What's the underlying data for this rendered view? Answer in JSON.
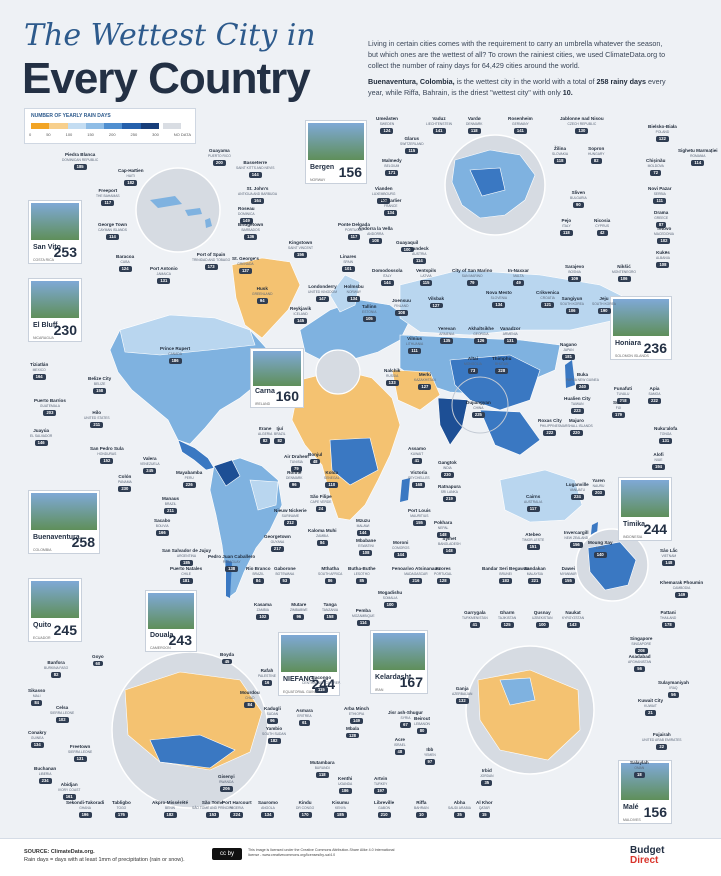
{
  "title_line1": "The Wettest City in",
  "title_line2": "Every Country",
  "intro_p1": "Living in certain cities comes with the requirement to carry an umbrella whatever the season, but which ones are the wettest of all? To crown the rainiest cities, we used ClimateData.org to collect the number of rainy days for 64,429 cities around the world.",
  "intro_p2_a": "Buenaventura, Colombia,",
  "intro_p2_b": " is the wettest city in the world with a total of ",
  "intro_p2_c": "258 rainy days",
  "intro_p2_d": " every year, while Riffa, Bahrain, is the driest \"wettest city\" with only ",
  "intro_p2_e": "10.",
  "legend": {
    "title": "NUMBER OF YEARLY RAIN DAYS",
    "ticks": [
      "0",
      "50",
      "100",
      "150",
      "200",
      "250",
      "300",
      "NO DATA"
    ],
    "colors": [
      "#f2a424",
      "#f7cf8c",
      "#c4ddf2",
      "#8fbde6",
      "#4f8fd0",
      "#2460ac",
      "#173e7a",
      "#d9dde3"
    ]
  },
  "map_colors": {
    "ocean": "#eef1f5",
    "land_light": "#b9d6ef",
    "land_mid": "#7fb2e0",
    "land_dark": "#3a78c2",
    "land_darkest": "#1d4f95",
    "dry": "#f4c271",
    "circle": "#d6dbe2"
  },
  "photos": [
    {
      "city": "Bergen",
      "country": "NORWAY",
      "value": "156"
    },
    {
      "city": "San Vito",
      "country": "COSTA RICA",
      "value": "253"
    },
    {
      "city": "El Bluff",
      "country": "NICARAGUA",
      "value": "230"
    },
    {
      "city": "Honiara",
      "country": "SOLOMON ISLANDS",
      "value": "236"
    },
    {
      "city": "Carna",
      "country": "IRELAND",
      "value": "160"
    },
    {
      "city": "Buenaventura",
      "country": "COLOMBIA",
      "value": "258"
    },
    {
      "city": "Timika",
      "country": "INDONESIA",
      "value": "244"
    },
    {
      "city": "Quito",
      "country": "ECUADOR",
      "value": "245"
    },
    {
      "city": "Douala",
      "country": "CAMEROON",
      "value": "243"
    },
    {
      "city": "NIEFANG",
      "country": "EQUATORIAL GUINEA",
      "value": "244"
    },
    {
      "city": "Kelardasht",
      "country": "IRAN",
      "value": "167"
    },
    {
      "city": "Malé",
      "country": "MALDIVES",
      "value": "156"
    }
  ],
  "labels": [
    {
      "c": "Umeåsten",
      "n": "SWEDEN",
      "v": "124"
    },
    {
      "c": "Vaduz",
      "n": "LIECHTENSTEIN",
      "v": "141"
    },
    {
      "c": "Vardø",
      "n": "DENMARK",
      "v": "118"
    },
    {
      "c": "Rosenheim",
      "n": "GERMANY",
      "v": "141"
    },
    {
      "c": "Jablonne nad Nisou",
      "n": "CZECH REPUBLIC",
      "v": "130"
    },
    {
      "c": "Bielsko-Biała",
      "n": "POLAND",
      "v": "122"
    },
    {
      "c": "Glarus",
      "n": "SWITZERLAND",
      "v": "115"
    },
    {
      "c": "Guayama",
      "n": "PUERTO RICO",
      "v": "200"
    },
    {
      "c": "Piedra Blanca",
      "n": "DOMINICAN REPUBLIC",
      "v": "185"
    },
    {
      "c": "Cap-Haïtien",
      "n": "HAITI",
      "v": "182"
    },
    {
      "c": "Basseterre",
      "n": "SAINT KITTS AND NEVIS",
      "v": "144"
    },
    {
      "c": "Malmedy",
      "n": "BELGIUM",
      "v": "171"
    },
    {
      "c": "Žilina",
      "n": "SLOVAKIA",
      "v": "118"
    },
    {
      "c": "Sopron",
      "n": "HUNGARY",
      "v": "82"
    },
    {
      "c": "Chișinău",
      "n": "MOLDOVA",
      "v": "72"
    },
    {
      "c": "Sighetu Marmației",
      "n": "ROMANIA",
      "v": "114"
    },
    {
      "c": "Freeport",
      "n": "THE BAHAMAS",
      "v": "117"
    },
    {
      "c": "St. John's",
      "n": "ANTIGUA AND BARBUDA",
      "v": "164"
    },
    {
      "c": "Vianden",
      "n": "LUXEMBOURG",
      "v": "133"
    },
    {
      "c": "Sliven",
      "n": "BULGARIA",
      "v": "90"
    },
    {
      "c": "Novi Pazar",
      "n": "SERBIA",
      "v": "111"
    },
    {
      "c": "Roseau",
      "n": "DOMINICA",
      "v": "149"
    },
    {
      "c": "Pontarlier",
      "n": "FRANCE",
      "v": "134"
    },
    {
      "c": "Drama",
      "n": "GREECE",
      "v": "87"
    },
    {
      "c": "George Town",
      "n": "CAYMAN ISLANDS",
      "v": "114"
    },
    {
      "c": "Bridgetown",
      "n": "BARBADOS",
      "v": "136"
    },
    {
      "c": "Ponte Delgada",
      "n": "PORTUGAL",
      "v": "117"
    },
    {
      "c": "Andorra la Vella",
      "n": "ANDORRA",
      "v": "108"
    },
    {
      "c": "Pejo",
      "n": "ITALY",
      "v": "118"
    },
    {
      "c": "Nicosia",
      "n": "CYPRUS",
      "v": "42"
    },
    {
      "c": "Tetovo",
      "n": "MACEDONIA",
      "v": "102"
    },
    {
      "c": "Guayaquil",
      "n": "",
      "v": "100"
    },
    {
      "c": "Kingstown",
      "n": "SAINT VINCENT",
      "v": "156"
    },
    {
      "c": "St. George's",
      "n": "GRENADA",
      "v": "137"
    },
    {
      "c": "Kukës",
      "n": "ALBANIA",
      "v": "108"
    },
    {
      "c": "Baracoa",
      "n": "CUBA",
      "v": "124"
    },
    {
      "c": "Port of Spain",
      "n": "TRINIDAD AND TOBAGO",
      "v": "173"
    },
    {
      "c": "Port Antonio",
      "n": "JAMAICA",
      "v": "131"
    },
    {
      "c": "Linares",
      "n": "SPAIN",
      "v": "101"
    },
    {
      "c": "Landeck",
      "n": "AUSTRIA",
      "v": "114"
    },
    {
      "c": "Domodossola",
      "n": "ITALY",
      "v": "144"
    },
    {
      "c": "Ventspils",
      "n": "LATVIA",
      "v": "115"
    },
    {
      "c": "City of San Marino",
      "n": "SAN MARINO",
      "v": "79"
    },
    {
      "c": "Sarajevo",
      "n": "BOSNIA",
      "v": "109"
    },
    {
      "c": "Nikšić",
      "n": "MONTENEGRO",
      "v": "106"
    },
    {
      "c": "In-Naxxar",
      "n": "MALTA",
      "v": "49"
    },
    {
      "c": "Londonderry",
      "n": "UNITED KINGDOM",
      "v": "147"
    },
    {
      "c": "Holmsbu",
      "n": "NORWAY",
      "v": "134"
    },
    {
      "c": "Nova Mesto",
      "n": "SLOVENIA",
      "v": "134"
    },
    {
      "c": "Crikvenica",
      "n": "CROATIA",
      "v": "121"
    },
    {
      "c": "Husk",
      "n": "GREENLAND",
      "v": "94"
    },
    {
      "c": "Tallinn",
      "n": "ESTONIA",
      "v": "105"
    },
    {
      "c": "Joensuu",
      "n": "FINLAND",
      "v": "108"
    },
    {
      "c": "Vilsbak",
      "n": "",
      "v": "127"
    },
    {
      "c": "Sangiyun",
      "n": "SOUTH KOREA",
      "v": "106"
    },
    {
      "c": "Jeju",
      "n": "SOUTH KOREA",
      "v": "190"
    },
    {
      "c": "Reykjavik",
      "n": "ICELAND",
      "v": "145"
    },
    {
      "c": "Yerevan",
      "n": "ARMENIA",
      "v": "135"
    },
    {
      "c": "Akhaltsikhe",
      "n": "GEORGIA",
      "v": "126"
    },
    {
      "c": "Vanadzor",
      "n": "ARMENIA",
      "v": "131"
    },
    {
      "c": "Vilnius",
      "n": "LITHUANIA",
      "v": "111"
    },
    {
      "c": "Prince Rupert",
      "n": "CANADA",
      "v": "186"
    },
    {
      "c": "Tiziatlán",
      "n": "MEXICO",
      "v": "164"
    },
    {
      "c": "Belize City",
      "n": "BELIZE",
      "v": "158"
    },
    {
      "c": "Puerto Barrios",
      "n": "GUATEMALA",
      "v": "203"
    },
    {
      "c": "Hilo",
      "n": "UNITED STATES",
      "v": "211"
    },
    {
      "c": "Juayúa",
      "n": "EL SALVADOR",
      "v": "146"
    },
    {
      "c": "San Pedro Sula",
      "n": "HONDURAS",
      "v": "152"
    },
    {
      "c": "Nagano",
      "n": "JAPAN",
      "v": "181"
    },
    {
      "c": "Buka",
      "n": "PAPUA NEW GUINEA",
      "v": "240"
    },
    {
      "c": "Funafuti",
      "n": "TUVALU",
      "v": "218"
    },
    {
      "c": "Apia",
      "n": "SAMOA",
      "v": "222"
    },
    {
      "c": "Nalchik",
      "n": "RUSSIA",
      "v": "133"
    },
    {
      "c": "Merki",
      "n": "KAZAKHSTAN",
      "v": "127"
    },
    {
      "c": "Altai",
      "n": "MONGOLIA",
      "v": "73"
    },
    {
      "c": "Thimphu",
      "n": "BHUTAN",
      "v": "228"
    },
    {
      "c": "Dujiangyan",
      "n": "CHINA",
      "v": "225"
    },
    {
      "c": "Hualien City",
      "n": "TAIWAN",
      "v": "223"
    },
    {
      "c": "Suva",
      "n": "FIJI",
      "v": "179"
    },
    {
      "c": "Nuku'alofa",
      "n": "TONGA",
      "v": "131"
    },
    {
      "c": "Majuro",
      "n": "MARSHALL ISLANDS",
      "v": "220"
    },
    {
      "c": "Roxas City",
      "n": "PHILIPPINES",
      "v": "222"
    },
    {
      "c": "Alofi",
      "n": "NIUE",
      "v": "194"
    },
    {
      "c": "Valera",
      "n": "VENEZUELA",
      "v": "245"
    },
    {
      "c": "Colón",
      "n": "PANAMA",
      "v": "230"
    },
    {
      "c": "Mayabamba",
      "n": "PERU",
      "v": "226"
    },
    {
      "c": "Ijuí",
      "n": "BRAZIL",
      "v": "82"
    },
    {
      "c": "Itrane",
      "n": "ALGERIA",
      "v": "82"
    },
    {
      "c": "Air Drahem",
      "n": "TUNISIA",
      "v": "79"
    },
    {
      "c": "Ronne",
      "n": "DENMARK",
      "v": "96"
    },
    {
      "c": "Bonjul",
      "n": "",
      "v": "48"
    },
    {
      "c": "Kolda",
      "n": "SENEGAL",
      "v": "110"
    },
    {
      "c": "Assamo",
      "n": "KUWAIT",
      "v": "41"
    },
    {
      "c": "Victoria",
      "n": "SEYCHELLES",
      "v": "168"
    },
    {
      "c": "Gangtok",
      "n": "INDIA",
      "v": "230"
    },
    {
      "c": "Ratnapura",
      "n": "SRI LANKA",
      "v": "219"
    },
    {
      "c": "Yaren",
      "n": "NAURU",
      "v": "203"
    },
    {
      "c": "Luganville",
      "n": "VANUATU",
      "v": "224"
    },
    {
      "c": "Manaus",
      "n": "BRAZIL",
      "v": "211"
    },
    {
      "c": "São Filipe",
      "n": "CAPE VERDE",
      "v": "24"
    },
    {
      "c": "Port Louis",
      "n": "MAURITIUS",
      "v": "155"
    },
    {
      "c": "Pokhara",
      "n": "NEPAL",
      "v": "148"
    },
    {
      "c": "Cairns",
      "n": "AUSTRALIA",
      "v": "117"
    },
    {
      "c": "Sacabo",
      "n": "BOLIVIA",
      "v": "166"
    },
    {
      "c": "Nieuw Nickerie",
      "n": "SURINAME",
      "v": "212"
    },
    {
      "c": "Kaloma Muhi",
      "n": "ZAMBIA",
      "v": "84"
    },
    {
      "c": "Mzuzu",
      "n": "MALAWI",
      "v": "144"
    },
    {
      "c": "Sylhet",
      "n": "BANGLADESH",
      "v": "148"
    },
    {
      "c": "Atebeo",
      "n": "TIMOR-LESTE",
      "v": "151"
    },
    {
      "c": "Invercargill",
      "n": "NEW ZEALAND",
      "v": "156"
    },
    {
      "c": "San Salvador de Jujuy",
      "n": "ARGENTINA",
      "v": "185"
    },
    {
      "c": "Georgetown",
      "n": "GUYANA",
      "v": "217"
    },
    {
      "c": "Mbabane",
      "n": "ESWATINI",
      "v": "108"
    },
    {
      "c": "Moroni",
      "n": "COMOROS",
      "v": "144"
    },
    {
      "c": "Moung Xay",
      "n": "LAOS",
      "v": "140"
    },
    {
      "c": "Sâo Lắc",
      "n": "VIETNAM",
      "v": "148"
    },
    {
      "c": "Pedro Juan Caballero",
      "n": "PARAGUAY",
      "v": "138"
    },
    {
      "c": "Puerto Natales",
      "n": "CHILE",
      "v": "181"
    },
    {
      "c": "Rio Branco",
      "n": "BRAZIL",
      "v": "84"
    },
    {
      "c": "Gaborone",
      "n": "BOTSWANA",
      "v": "53"
    },
    {
      "c": "Mthatha",
      "n": "SOUTH AFRICA",
      "v": "86"
    },
    {
      "c": "Butha-Buthe",
      "n": "LESOTHO",
      "v": "85"
    },
    {
      "c": "Fenoarivo Atsinanana",
      "n": "MADAGASCAR",
      "v": "216"
    },
    {
      "c": "Azores",
      "n": "PORTUGAL",
      "v": "128"
    },
    {
      "c": "Bandar Seri Begawan",
      "n": "BRUNEI",
      "v": "183"
    },
    {
      "c": "Sandakan",
      "n": "MALAYSIA",
      "v": "221"
    },
    {
      "c": "Dawei",
      "n": "MYANMAR",
      "v": "155"
    },
    {
      "c": "Khemarak Phoumin",
      "n": "CAMBODIA",
      "v": "149"
    },
    {
      "c": "Pattani",
      "n": "THAILAND",
      "v": "178"
    },
    {
      "c": "Kasama",
      "n": "ZAMBIA",
      "v": "102"
    },
    {
      "c": "Mutare",
      "n": "ZIMBABWE",
      "v": "96"
    },
    {
      "c": "Tanga",
      "n": "TANZANIA",
      "v": "158"
    },
    {
      "c": "Pemba",
      "n": "MOZAMBIQUE",
      "v": "114"
    },
    {
      "c": "Mogadishu",
      "n": "SOMALIA",
      "v": "100"
    },
    {
      "c": "Garrygala",
      "n": "TURKMENISTAN",
      "v": "41"
    },
    {
      "c": "Gharm",
      "n": "TAJIKISTAN",
      "v": "125"
    },
    {
      "c": "Qusnay",
      "n": "UZBEKISTAN",
      "v": "100"
    },
    {
      "c": "Naukat",
      "n": "KYRGYZSTAN",
      "v": "143"
    },
    {
      "c": "Singapore",
      "n": "SINGAPORE",
      "v": "208"
    },
    {
      "c": "Banfora",
      "n": "BURKINA FASO",
      "v": "82"
    },
    {
      "c": "Goyo",
      "n": "",
      "v": "60"
    },
    {
      "c": "Boyda",
      "n": "",
      "v": "45"
    },
    {
      "c": "Rafah",
      "n": "PALESTINE",
      "v": "16"
    },
    {
      "c": "Mourdou",
      "n": "CHAD",
      "v": "84"
    },
    {
      "c": "Kadugli",
      "n": "SUDAN",
      "v": "96"
    },
    {
      "c": "Asmara",
      "n": "ERITREA",
      "v": "61"
    },
    {
      "c": "Bacongo",
      "n": "CENTRAL AFRICAN REP.",
      "v": "115"
    },
    {
      "c": "Arba Minch",
      "n": "ETHIOPIA",
      "v": "149"
    },
    {
      "c": "Yambio",
      "n": "SOUTH SUDAN",
      "v": "182"
    },
    {
      "c": "Mbala",
      "n": "",
      "v": "128"
    },
    {
      "c": "Asadabad",
      "n": "AFGHANISTAN",
      "v": "56"
    },
    {
      "c": "Sulaymaniyah",
      "n": "IRAQ",
      "v": "56"
    },
    {
      "c": "Ganja",
      "n": "AZERBAIJAN",
      "v": "132"
    },
    {
      "c": "Kuwait City",
      "n": "KUWAIT",
      "v": "21"
    },
    {
      "c": "Fujairah",
      "n": "UNITED ARAB EMIRATES",
      "v": "22"
    },
    {
      "c": "Salaylah",
      "n": "OMAN",
      "v": "18"
    },
    {
      "c": "Sikasso",
      "n": "MALI",
      "v": "84"
    },
    {
      "c": "Celsa",
      "n": "SIERRA LEONE",
      "v": "102"
    },
    {
      "c": "Conakry",
      "n": "GUINEA",
      "v": "134"
    },
    {
      "c": "Freetown",
      "n": "SIERRA LEONE",
      "v": "131"
    },
    {
      "c": "Buchanan",
      "n": "LIBERIA",
      "v": "234"
    },
    {
      "c": "Abidjan",
      "n": "IVORY COAST",
      "v": "161"
    },
    {
      "c": "Sekondi-Takoradi",
      "n": "GHANA",
      "v": "196"
    },
    {
      "c": "Tabligbo",
      "n": "TOGO",
      "v": "176"
    },
    {
      "c": "Akpro-Missérété",
      "n": "BENIN",
      "v": "182"
    },
    {
      "c": "São Tomé",
      "n": "SÃO TOMÉ AND PRÍNCIPE",
      "v": "153"
    },
    {
      "c": "Port Harcourt",
      "n": "NIGERIA",
      "v": "224"
    },
    {
      "c": "Sauromo",
      "n": "ANGOLA",
      "v": "134"
    },
    {
      "c": "Kindu",
      "n": "DR CONGO",
      "v": "170"
    },
    {
      "c": "Kisumu",
      "n": "KENYA",
      "v": "185"
    },
    {
      "c": "Libreville",
      "n": "GABON",
      "v": "210"
    },
    {
      "c": "Gisenyi",
      "n": "RWANDA",
      "v": "206"
    },
    {
      "c": "Mutambara",
      "n": "BURUNDI",
      "v": "118"
    },
    {
      "c": "Kenthi",
      "n": "UGANDA",
      "v": "186"
    },
    {
      "c": "Artvin",
      "n": "TURKEY",
      "v": "197"
    },
    {
      "c": "Jisr ash-Shugur",
      "n": "SYRIA",
      "v": "67"
    },
    {
      "c": "Beirout",
      "n": "LEBANON",
      "v": "80"
    },
    {
      "c": "Acre",
      "n": "ISRAEL",
      "v": "48"
    },
    {
      "c": "Ibb",
      "n": "YEMEN",
      "v": "97"
    },
    {
      "c": "Irbid",
      "n": "JORDAN",
      "v": "35"
    },
    {
      "c": "Riffa",
      "n": "BAHRAIN",
      "v": "10"
    },
    {
      "c": "Abha",
      "n": "SAUDI ARABIA",
      "v": "35"
    },
    {
      "c": "Al Khor",
      "n": "QATAR",
      "v": "15"
    }
  ],
  "footer": {
    "source_label": "SOURCE: ClimateData.org.",
    "source_note": "Rain days = days with at least 1mm of precipitation (rain or snow).",
    "cc": "cc by",
    "license": "This image is licensed under the Creative Commons Attribution-Share Alike 4.0 International license - www.creativecommons.org/licenses/by-sa/4.0",
    "brand_1": "Budget",
    "brand_2": "Direct"
  }
}
